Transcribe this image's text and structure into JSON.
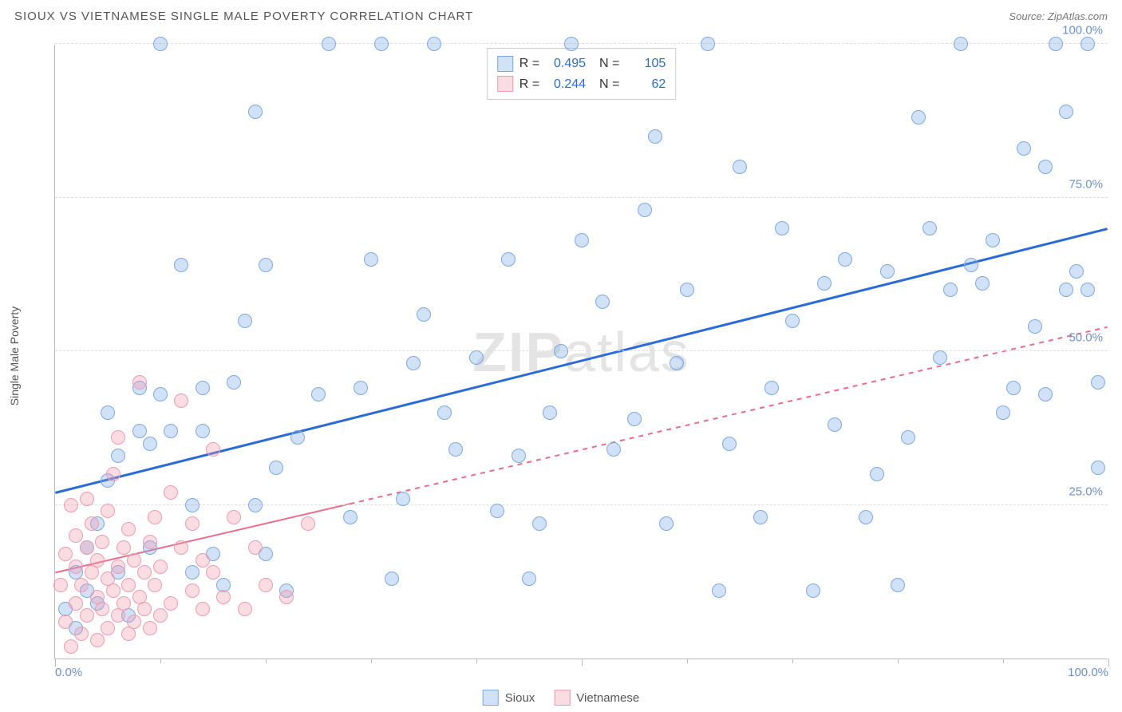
{
  "title": "SIOUX VS VIETNAMESE SINGLE MALE POVERTY CORRELATION CHART",
  "source_label": "Source:",
  "source_name": "ZipAtlas.com",
  "yaxis_title": "Single Male Poverty",
  "watermark": "ZIPatlas",
  "chart": {
    "type": "scatter",
    "xlim": [
      0,
      100
    ],
    "ylim": [
      0,
      100
    ],
    "yticks": [
      25,
      50,
      75,
      100
    ],
    "ytick_labels": [
      "25.0%",
      "50.0%",
      "75.0%",
      "100.0%"
    ],
    "xticks_minor": [
      10,
      20,
      30,
      40,
      50,
      60,
      70,
      80,
      90
    ],
    "xticks_major": [
      0,
      50,
      100
    ],
    "xtick_labels": [
      "0.0%",
      "",
      "100.0%"
    ],
    "background_color": "#ffffff",
    "grid_color": "#dddddd",
    "axis_color": "#bbbbbb",
    "tick_label_color": "#6b8fd4",
    "marker_radius": 9,
    "series": [
      {
        "name": "Sioux",
        "fill": "rgba(124,169,230,0.35)",
        "stroke": "#7ca9e6",
        "trend_color": "#2a6bd6",
        "trend_width": 3,
        "trend_dash": "none",
        "trend": {
          "x1": 0,
          "y1": 27,
          "x2": 100,
          "y2": 70,
          "dash_from_x": 100
        },
        "R": "0.495",
        "N": "105",
        "points": [
          [
            1,
            8
          ],
          [
            2,
            5
          ],
          [
            2,
            14
          ],
          [
            3,
            18
          ],
          [
            3,
            11
          ],
          [
            4,
            22
          ],
          [
            4,
            9
          ],
          [
            5,
            29
          ],
          [
            5,
            40
          ],
          [
            6,
            14
          ],
          [
            6,
            33
          ],
          [
            7,
            7
          ],
          [
            8,
            37
          ],
          [
            8,
            44
          ],
          [
            9,
            35
          ],
          [
            9,
            18
          ],
          [
            10,
            100
          ],
          [
            10,
            43
          ],
          [
            11,
            37
          ],
          [
            12,
            64
          ],
          [
            13,
            25
          ],
          [
            13,
            14
          ],
          [
            14,
            44
          ],
          [
            14,
            37
          ],
          [
            15,
            17
          ],
          [
            16,
            12
          ],
          [
            17,
            45
          ],
          [
            18,
            55
          ],
          [
            19,
            25
          ],
          [
            19,
            89
          ],
          [
            20,
            64
          ],
          [
            20,
            17
          ],
          [
            21,
            31
          ],
          [
            22,
            11
          ],
          [
            23,
            36
          ],
          [
            25,
            43
          ],
          [
            26,
            100
          ],
          [
            28,
            23
          ],
          [
            29,
            44
          ],
          [
            30,
            65
          ],
          [
            31,
            100
          ],
          [
            32,
            13
          ],
          [
            33,
            26
          ],
          [
            34,
            48
          ],
          [
            35,
            56
          ],
          [
            36,
            100
          ],
          [
            37,
            40
          ],
          [
            38,
            34
          ],
          [
            40,
            49
          ],
          [
            42,
            24
          ],
          [
            43,
            65
          ],
          [
            44,
            33
          ],
          [
            45,
            13
          ],
          [
            46,
            22
          ],
          [
            47,
            40
          ],
          [
            48,
            50
          ],
          [
            49,
            100
          ],
          [
            50,
            68
          ],
          [
            52,
            58
          ],
          [
            53,
            34
          ],
          [
            55,
            39
          ],
          [
            56,
            73
          ],
          [
            57,
            85
          ],
          [
            58,
            22
          ],
          [
            59,
            48
          ],
          [
            60,
            60
          ],
          [
            62,
            100
          ],
          [
            63,
            11
          ],
          [
            64,
            35
          ],
          [
            65,
            80
          ],
          [
            67,
            23
          ],
          [
            68,
            44
          ],
          [
            69,
            70
          ],
          [
            70,
            55
          ],
          [
            72,
            11
          ],
          [
            73,
            61
          ],
          [
            74,
            38
          ],
          [
            75,
            65
          ],
          [
            77,
            23
          ],
          [
            78,
            30
          ],
          [
            79,
            63
          ],
          [
            80,
            12
          ],
          [
            81,
            36
          ],
          [
            82,
            88
          ],
          [
            83,
            70
          ],
          [
            84,
            49
          ],
          [
            85,
            60
          ],
          [
            86,
            100
          ],
          [
            87,
            64
          ],
          [
            88,
            61
          ],
          [
            89,
            68
          ],
          [
            90,
            40
          ],
          [
            91,
            44
          ],
          [
            92,
            83
          ],
          [
            93,
            54
          ],
          [
            94,
            80
          ],
          [
            95,
            100
          ],
          [
            96,
            89
          ],
          [
            97,
            63
          ],
          [
            98,
            100
          ],
          [
            98,
            60
          ],
          [
            99,
            45
          ],
          [
            99,
            31
          ],
          [
            96,
            60
          ],
          [
            94,
            43
          ]
        ]
      },
      {
        "name": "Vietnamese",
        "fill": "rgba(240,155,175,0.35)",
        "stroke": "#f09baf",
        "trend_color": "#ec6b8a",
        "trend_width": 2,
        "trend_dash": "6,6",
        "trend": {
          "x1": 0,
          "y1": 14,
          "x2": 100,
          "y2": 54,
          "dash_from_x": 28
        },
        "R": "0.244",
        "N": "62",
        "points": [
          [
            0.5,
            12
          ],
          [
            1,
            6
          ],
          [
            1,
            17
          ],
          [
            1.5,
            2
          ],
          [
            1.5,
            25
          ],
          [
            2,
            9
          ],
          [
            2,
            15
          ],
          [
            2,
            20
          ],
          [
            2.5,
            4
          ],
          [
            2.5,
            12
          ],
          [
            3,
            7
          ],
          [
            3,
            18
          ],
          [
            3,
            26
          ],
          [
            3.5,
            14
          ],
          [
            3.5,
            22
          ],
          [
            4,
            3
          ],
          [
            4,
            10
          ],
          [
            4,
            16
          ],
          [
            4.5,
            8
          ],
          [
            4.5,
            19
          ],
          [
            5,
            5
          ],
          [
            5,
            13
          ],
          [
            5,
            24
          ],
          [
            5.5,
            11
          ],
          [
            5.5,
            30
          ],
          [
            6,
            7
          ],
          [
            6,
            15
          ],
          [
            6,
            36
          ],
          [
            6.5,
            9
          ],
          [
            6.5,
            18
          ],
          [
            7,
            4
          ],
          [
            7,
            12
          ],
          [
            7,
            21
          ],
          [
            7.5,
            6
          ],
          [
            7.5,
            16
          ],
          [
            8,
            10
          ],
          [
            8,
            45
          ],
          [
            8.5,
            8
          ],
          [
            8.5,
            14
          ],
          [
            9,
            5
          ],
          [
            9,
            19
          ],
          [
            9.5,
            12
          ],
          [
            9.5,
            23
          ],
          [
            10,
            7
          ],
          [
            10,
            15
          ],
          [
            11,
            9
          ],
          [
            11,
            27
          ],
          [
            12,
            42
          ],
          [
            12,
            18
          ],
          [
            13,
            11
          ],
          [
            13,
            22
          ],
          [
            14,
            8
          ],
          [
            14,
            16
          ],
          [
            15,
            14
          ],
          [
            15,
            34
          ],
          [
            16,
            10
          ],
          [
            17,
            23
          ],
          [
            18,
            8
          ],
          [
            19,
            18
          ],
          [
            20,
            12
          ],
          [
            22,
            10
          ],
          [
            24,
            22
          ]
        ]
      }
    ]
  },
  "legend_top": {
    "r_label": "R =",
    "n_label": "N ="
  },
  "legend_bottom": {
    "items": [
      "Sioux",
      "Vietnamese"
    ]
  }
}
